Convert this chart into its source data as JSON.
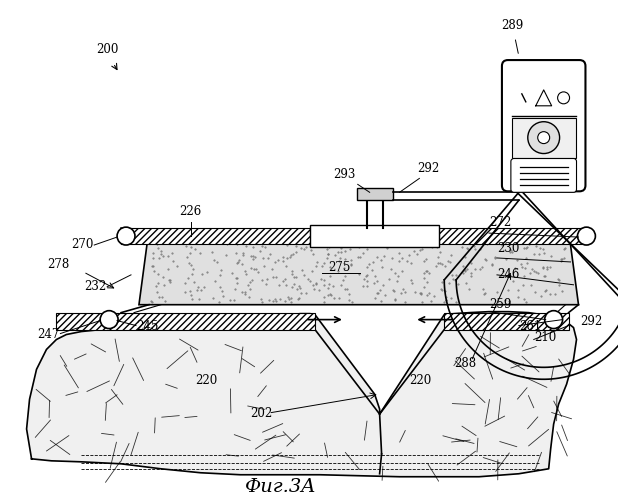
{
  "title": "Фиг.3A",
  "bg_color": "#ffffff",
  "line_color": "#000000"
}
